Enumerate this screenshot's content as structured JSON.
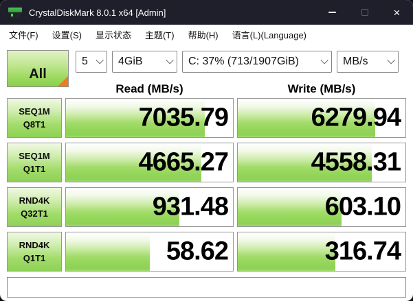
{
  "window": {
    "title": "CrystalDiskMark 8.0.1 x64 [Admin]",
    "controls": {
      "close_glyph": "×"
    }
  },
  "menu": {
    "items": [
      {
        "label": "文件(F)"
      },
      {
        "label": "设置(S)"
      },
      {
        "label": "显示状态"
      },
      {
        "label": "主题(T)"
      },
      {
        "label": "帮助(H)"
      },
      {
        "label": "语言(L)(Language)"
      }
    ]
  },
  "toolbar": {
    "all_label": "All",
    "test_count": "5",
    "test_size": "4GiB",
    "target_drive": "C: 37% (713/1907GiB)",
    "unit": "MB/s"
  },
  "columns": {
    "read": "Read (MB/s)",
    "write": "Write (MB/s)"
  },
  "rows": [
    {
      "test": "SEQ1M",
      "queue": "Q8T1",
      "read": "7035.79",
      "write": "6279.94",
      "read_fill": 83,
      "write_fill": 82
    },
    {
      "test": "SEQ1M",
      "queue": "Q1T1",
      "read": "4665.27",
      "write": "4558.31",
      "read_fill": 81,
      "write_fill": 80
    },
    {
      "test": "RND4K",
      "queue": "Q32T1",
      "read": "931.48",
      "write": "603.10",
      "read_fill": 68,
      "write_fill": 62
    },
    {
      "test": "RND4K",
      "queue": "Q1T1",
      "read": "58.62",
      "write": "316.74",
      "read_fill": 50,
      "write_fill": 58
    }
  ],
  "statusbar": {
    "value": ""
  },
  "colors": {
    "titlebar_bg": "#1f1f2b",
    "bar_green": "#8ed156",
    "corner_orange": "#ee7a21",
    "cell_border": "#979797"
  }
}
